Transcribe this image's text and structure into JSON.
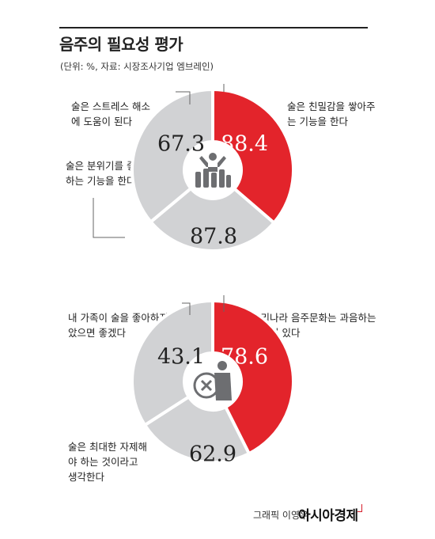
{
  "header": {
    "title": "음주의 필요성 평가",
    "source": "(단위: %, 자료: 시장조사기업 엠브레인)"
  },
  "colors": {
    "accent": "#e3242b",
    "neutral": "#d1d2d4",
    "line": "#666666"
  },
  "chart_data": [
    {
      "type": "donut",
      "values": [
        88.4,
        67.3,
        87.8
      ],
      "labels": [
        "88.4",
        "67.3",
        "87.8"
      ],
      "callouts": [
        "술은 친밀감을 쌓아주는 기능을 한다",
        "술은 스트레스 해소에 도움이 된다",
        "술은 분위기를 좋게 하는 기능을 한다"
      ],
      "highlight_index": 0,
      "icon": "people-drinks-icon"
    },
    {
      "type": "donut",
      "values": [
        78.6,
        43.1,
        62.9
      ],
      "labels": [
        "78.6",
        "43.1",
        "62.9"
      ],
      "callouts": [
        "우리나라 음주문화는 과음하는 경향이 있다",
        "내 가족이 술을 좋아하지 않았으면 좋겠다",
        "술은 최대한 자제해야 하는 것이라고 생각한다"
      ],
      "highlight_index": 0,
      "icon": "no-drinking-person-icon"
    }
  ],
  "footer": {
    "credit": "그래픽 이영우",
    "brand": "아시아경제"
  }
}
